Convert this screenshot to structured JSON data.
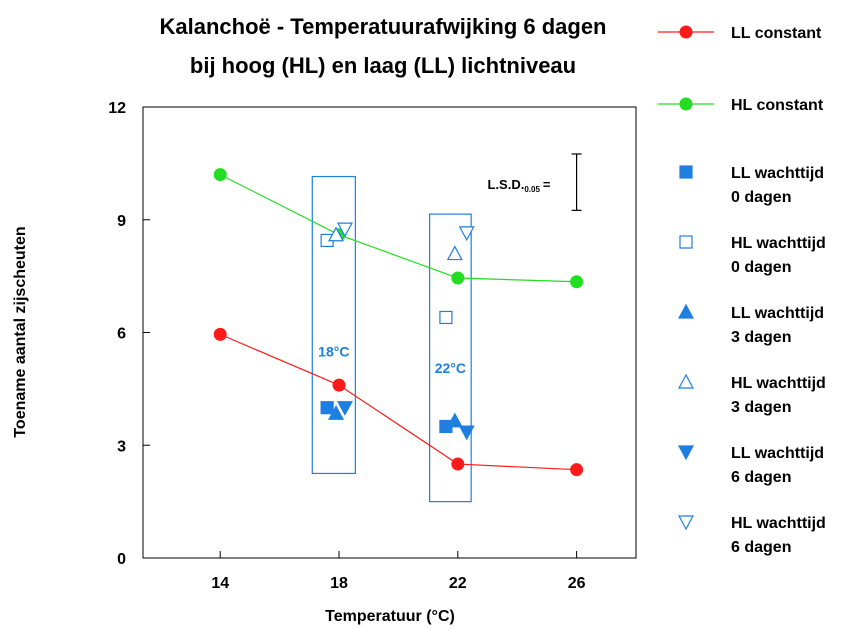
{
  "chart_data": {
    "type": "scatter",
    "title_lines": [
      "Kalanchoë - Temperatuurafwijking 6 dagen",
      "bij hoog (HL) en laag (LL) lichtniveau"
    ],
    "xlabel": "Temperatuur (°C)",
    "ylabel": "Toename aantal zijscheuten",
    "xlim": [
      11.4,
      28.0
    ],
    "ylim": [
      0,
      12
    ],
    "xticks": [
      14,
      18,
      22,
      26
    ],
    "yticks": [
      0,
      3,
      6,
      9,
      12
    ],
    "grid": false,
    "legend_position": "right",
    "colors": {
      "red": "#ff1a1a",
      "green": "#22dd22",
      "blue": "#1f7fe0"
    },
    "series": [
      {
        "name": "LL constant",
        "marker": "circle",
        "color": "red",
        "connected": true,
        "points": [
          [
            14,
            5.95
          ],
          [
            18,
            4.6
          ],
          [
            22,
            2.5
          ],
          [
            26,
            2.35
          ]
        ]
      },
      {
        "name": "HL constant",
        "marker": "circle",
        "color": "green",
        "connected": true,
        "points": [
          [
            14,
            10.2
          ],
          [
            18,
            8.6
          ],
          [
            22,
            7.45
          ],
          [
            26,
            7.35
          ]
        ]
      },
      {
        "name": "LL wachttijd 0 dagen",
        "legend_lines": [
          "LL wachttijd",
          "0 dagen"
        ],
        "marker": "square-filled",
        "color": "blue",
        "points": [
          [
            17.6,
            4.0
          ],
          [
            21.6,
            3.5
          ]
        ]
      },
      {
        "name": "HL wachttijd 0 dagen",
        "legend_lines": [
          "HL wachttijd",
          "0 dagen"
        ],
        "marker": "square-open",
        "color": "blue",
        "points": [
          [
            17.6,
            8.45
          ],
          [
            21.6,
            6.4
          ]
        ]
      },
      {
        "name": "LL wachttijd 3 dagen",
        "legend_lines": [
          "LL wachttijd",
          "3 dagen"
        ],
        "marker": "triangle-up-filled",
        "color": "blue",
        "points": [
          [
            17.9,
            3.85
          ],
          [
            21.9,
            3.65
          ]
        ]
      },
      {
        "name": "HL wachttijd 3 dagen",
        "legend_lines": [
          "HL wachttijd",
          "3 dagen"
        ],
        "marker": "triangle-up-open",
        "color": "blue",
        "points": [
          [
            17.9,
            8.6
          ],
          [
            21.9,
            8.1
          ]
        ]
      },
      {
        "name": "LL wachttijd 6 dagen",
        "legend_lines": [
          "LL wachttijd",
          "6 dagen"
        ],
        "marker": "triangle-down-filled",
        "color": "blue",
        "points": [
          [
            18.2,
            4.0
          ],
          [
            22.3,
            3.35
          ]
        ]
      },
      {
        "name": "HL wachttijd 6 dagen",
        "legend_lines": [
          "HL wachttijd",
          "6 dagen"
        ],
        "marker": "triangle-down-open",
        "color": "blue",
        "points": [
          [
            18.2,
            8.75
          ],
          [
            22.3,
            8.65
          ]
        ]
      }
    ],
    "annotations": [
      {
        "label": "18°C",
        "box_x": [
          17.1,
          18.55
        ],
        "box_y": [
          2.25,
          10.15
        ],
        "label_y": 5.5
      },
      {
        "label": "22°C",
        "box_x": [
          21.05,
          22.45
        ],
        "box_y": [
          1.5,
          9.15
        ],
        "label_y": 5.05
      }
    ],
    "lsd": {
      "label": "L.S.D.",
      "subscript": "0.05",
      "suffix": "=",
      "x": 26.0,
      "y_range": [
        9.25,
        10.75
      ],
      "label_x": 23.0,
      "label_y": 9.95
    }
  }
}
